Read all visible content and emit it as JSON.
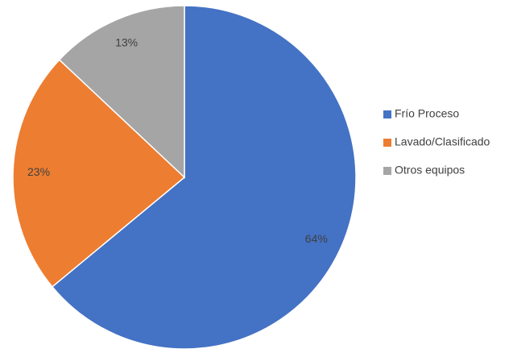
{
  "chart_data": {
    "type": "pie",
    "categories": [
      "Frío Proceso",
      "Lavado/Clasificado",
      "Otros equipos"
    ],
    "values": [
      64,
      23,
      13
    ],
    "value_labels": [
      "64%",
      "23%",
      "13%"
    ],
    "colors": [
      "#4472c4",
      "#ed7d31",
      "#a5a5a5"
    ],
    "legend": "right"
  }
}
